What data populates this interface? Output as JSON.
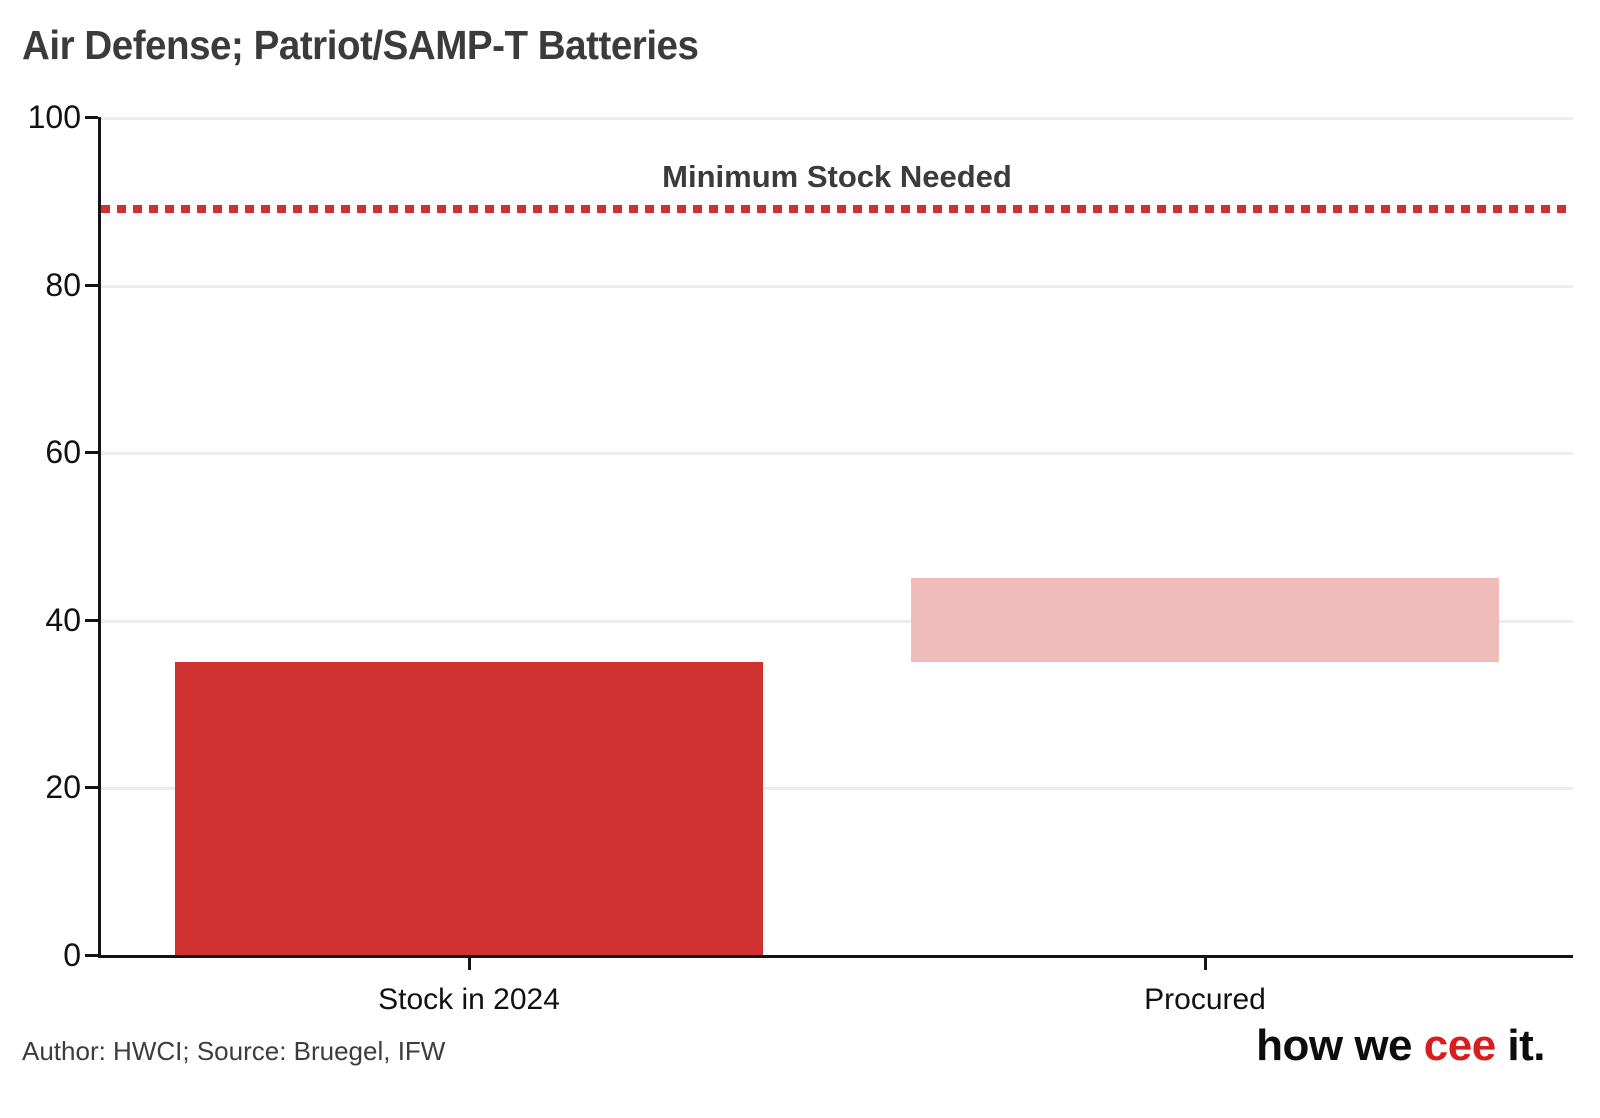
{
  "title": "Air Defense; Patriot/SAMP-T Batteries",
  "footer": {
    "credit": "Author: HWCI; Source: Bruegel, IFW"
  },
  "logo": {
    "part1": "how we ",
    "part2": "cee",
    "part3": " it."
  },
  "colors": {
    "bar_solid": "#cf3131",
    "bar_light": "#f0bcbb",
    "reference_line": "#d22f2f",
    "gridline": "#ededed",
    "axis": "#141414",
    "title_text": "#3b3b3b",
    "logo_accent": "#d71f1f"
  },
  "chart_data": {
    "type": "bar",
    "title": "Air Defense; Patriot/SAMP-T Batteries",
    "categories": [
      "Stock in 2024",
      "Procured"
    ],
    "bars": [
      {
        "label": "Stock in 2024",
        "start": 0,
        "end": 35,
        "style": "solid"
      },
      {
        "label": "Procured",
        "start": 35,
        "end": 45,
        "style": "light"
      }
    ],
    "series": [
      {
        "name": "Stock in 2024",
        "values": [
          35,
          null
        ]
      },
      {
        "name": "Procured (additional)",
        "values": [
          null,
          10
        ]
      }
    ],
    "reference_line": {
      "label": "Minimum Stock Needed",
      "value": 89
    },
    "xlabel": "",
    "ylabel": "",
    "ylim": [
      0,
      100
    ],
    "yticks": [
      0,
      20,
      40,
      60,
      80,
      100
    ],
    "grid": true,
    "legend_position": "none",
    "bar_width_fraction": 0.8
  }
}
